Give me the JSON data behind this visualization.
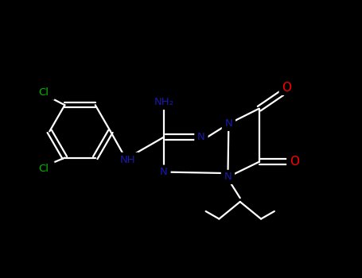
{
  "background_color": "#000000",
  "atom_colors": {
    "N": "#1a1aaa",
    "O": "#ff0000",
    "Cl": "#00bb00"
  },
  "figsize": [
    4.55,
    3.5
  ],
  "dpi": 100,
  "xlim": [
    0,
    9.5
  ],
  "ylim": [
    0,
    7.3
  ],
  "bond_lw": 1.6,
  "bond_color": "white",
  "font_size": 9.5,
  "font_size_O": 11
}
